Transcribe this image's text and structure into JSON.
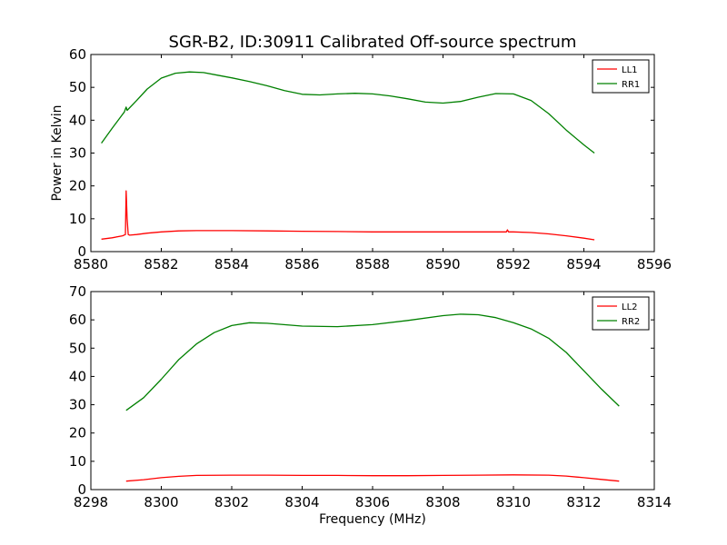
{
  "figure": {
    "title": "SGR-B2, ID:30911 Calibrated Off-source spectrum"
  },
  "chart_data": [
    {
      "type": "line",
      "title": "SGR-B2, ID:30911 Calibrated Off-source spectrum",
      "xlabel": "",
      "ylabel": "Power in Kelvin",
      "xlim": [
        8580,
        8596
      ],
      "ylim": [
        0,
        60
      ],
      "xticks": [
        8580,
        8582,
        8584,
        8586,
        8588,
        8590,
        8592,
        8594,
        8596
      ],
      "yticks": [
        0,
        10,
        20,
        30,
        40,
        50,
        60
      ],
      "grid": false,
      "legend": "top-right",
      "series": [
        {
          "name": "LL1",
          "color": "#ff0000",
          "x": [
            8580.3,
            8580.6,
            8580.9,
            8580.98,
            8581.0,
            8581.03,
            8581.06,
            8581.1,
            8581.3,
            8581.6,
            8582.0,
            8582.5,
            8583.0,
            8584.0,
            8585.0,
            8586.0,
            8587.0,
            8588.0,
            8589.0,
            8590.0,
            8591.0,
            8591.8,
            8591.83,
            8591.86,
            8592.0,
            8592.5,
            8593.0,
            8593.5,
            8594.0,
            8594.3
          ],
          "y": [
            3.8,
            4.2,
            4.8,
            5.2,
            18.5,
            10.0,
            5.2,
            5.0,
            5.2,
            5.6,
            6.0,
            6.3,
            6.4,
            6.4,
            6.3,
            6.2,
            6.1,
            6.0,
            6.0,
            6.0,
            6.0,
            6.0,
            6.6,
            6.0,
            6.0,
            5.8,
            5.4,
            4.8,
            4.1,
            3.6
          ]
        },
        {
          "name": "RR1",
          "color": "#008000",
          "x": [
            8580.3,
            8580.6,
            8580.95,
            8581.0,
            8581.03,
            8581.3,
            8581.6,
            8582.0,
            8582.4,
            8582.8,
            8583.2,
            8583.6,
            8584.0,
            8584.5,
            8585.0,
            8585.5,
            8586.0,
            8586.5,
            8587.0,
            8587.5,
            8588.0,
            8588.5,
            8589.0,
            8589.5,
            8590.0,
            8590.5,
            8591.0,
            8591.5,
            8592.0,
            8592.5,
            8593.0,
            8593.5,
            8594.0,
            8594.3
          ],
          "y": [
            33.0,
            37.5,
            42.5,
            44.0,
            43.0,
            46.0,
            49.5,
            52.8,
            54.3,
            54.7,
            54.5,
            53.7,
            52.9,
            51.8,
            50.5,
            49.0,
            47.9,
            47.7,
            48.0,
            48.2,
            48.0,
            47.4,
            46.5,
            45.5,
            45.2,
            45.7,
            47.0,
            48.1,
            48.0,
            46.0,
            42.0,
            37.0,
            32.5,
            30.0
          ]
        }
      ]
    },
    {
      "type": "line",
      "title": "",
      "xlabel": "Frequency (MHz)",
      "ylabel": "",
      "xlim": [
        8298,
        8314
      ],
      "ylim": [
        0,
        70
      ],
      "xticks": [
        8298,
        8300,
        8302,
        8304,
        8306,
        8308,
        8310,
        8312,
        8314
      ],
      "yticks": [
        0,
        10,
        20,
        30,
        40,
        50,
        60,
        70
      ],
      "grid": false,
      "legend": "top-right",
      "series": [
        {
          "name": "LL2",
          "color": "#ff0000",
          "x": [
            8299.0,
            8299.5,
            8300.0,
            8300.5,
            8301.0,
            8302.0,
            8303.0,
            8304.0,
            8305.0,
            8306.0,
            8307.0,
            8308.0,
            8309.0,
            8310.0,
            8311.0,
            8311.5,
            8312.0,
            8312.5,
            8313.0
          ],
          "y": [
            3.0,
            3.5,
            4.2,
            4.7,
            5.0,
            5.1,
            5.1,
            5.0,
            5.0,
            4.9,
            4.9,
            5.0,
            5.1,
            5.2,
            5.1,
            4.8,
            4.2,
            3.6,
            3.0
          ]
        },
        {
          "name": "RR2",
          "color": "#008000",
          "x": [
            8299.0,
            8299.5,
            8300.0,
            8300.5,
            8301.0,
            8301.5,
            8302.0,
            8302.5,
            8303.0,
            8304.0,
            8305.0,
            8306.0,
            8307.0,
            8308.0,
            8308.5,
            8309.0,
            8309.5,
            8310.0,
            8310.5,
            8311.0,
            8311.5,
            8312.0,
            8312.5,
            8313.0
          ],
          "y": [
            28.0,
            32.5,
            39.0,
            46.0,
            51.5,
            55.5,
            58.0,
            59.0,
            58.8,
            57.8,
            57.6,
            58.3,
            59.8,
            61.5,
            62.0,
            61.8,
            60.8,
            59.0,
            56.8,
            53.5,
            48.5,
            42.0,
            35.5,
            29.5
          ]
        }
      ]
    }
  ]
}
